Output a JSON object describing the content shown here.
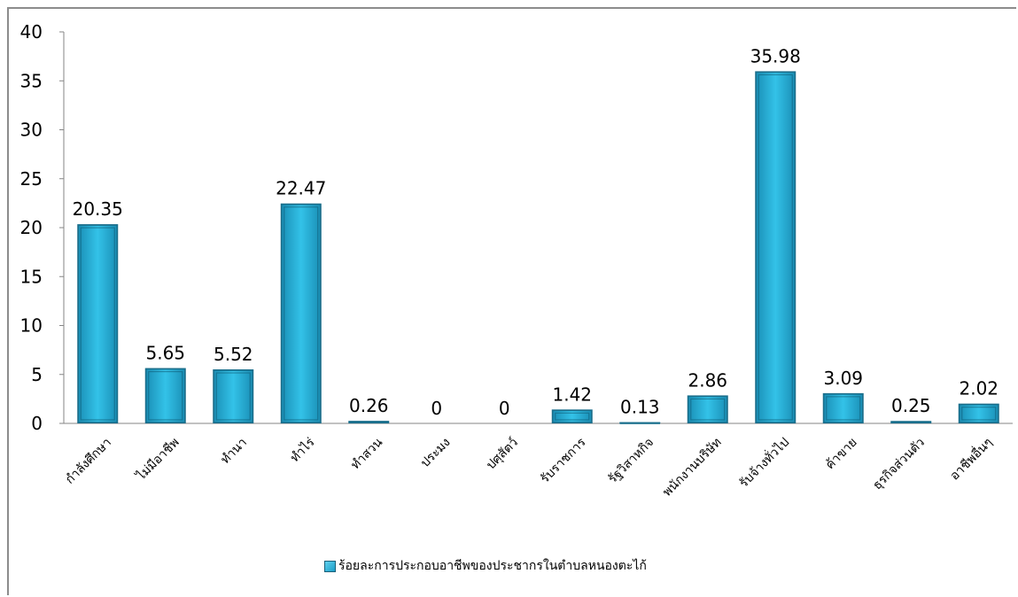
{
  "chart_data": {
    "type": "bar",
    "categories": [
      "กำลังศึกษา",
      "ไม่มีอาชีพ",
      "ทำนา",
      "ทำไร่",
      "ทำสวน",
      "ประมง",
      "ปศุสัตว์",
      "รับราชการ",
      "รัฐวิสาหกิจ",
      "พนักงานบริษัท",
      "รับจ้างทั่วไป",
      "ค้าขาย",
      "ธุรกิจส่วนตัว",
      "อาชีพอื่นๆ"
    ],
    "values": [
      20.35,
      5.65,
      5.52,
      22.47,
      0.26,
      0,
      0,
      1.42,
      0.13,
      2.86,
      35.98,
      3.09,
      0.25,
      2.02
    ],
    "data_labels": [
      "20.35",
      "5.65",
      "5.52",
      "22.47",
      "0.26",
      "0",
      "0",
      "1.42",
      "0.13",
      "2.86",
      "35.98",
      "3.09",
      "0.25",
      "2.02"
    ],
    "series": [
      {
        "name": "ร้อยละการประกอบอาชีพของประชากรในตำบลหนองตะไก้",
        "values": [
          20.35,
          5.65,
          5.52,
          22.47,
          0.26,
          0,
          0,
          1.42,
          0.13,
          2.86,
          35.98,
          3.09,
          0.25,
          2.02
        ]
      }
    ],
    "yticks": [
      "0",
      "5",
      "10",
      "15",
      "20",
      "25",
      "30",
      "35",
      "40"
    ],
    "ylim": [
      0,
      40
    ],
    "title": "",
    "xlabel": "",
    "ylabel": "",
    "legend_position": "bottom",
    "grid": false,
    "bar_color": "#29b6dd"
  }
}
